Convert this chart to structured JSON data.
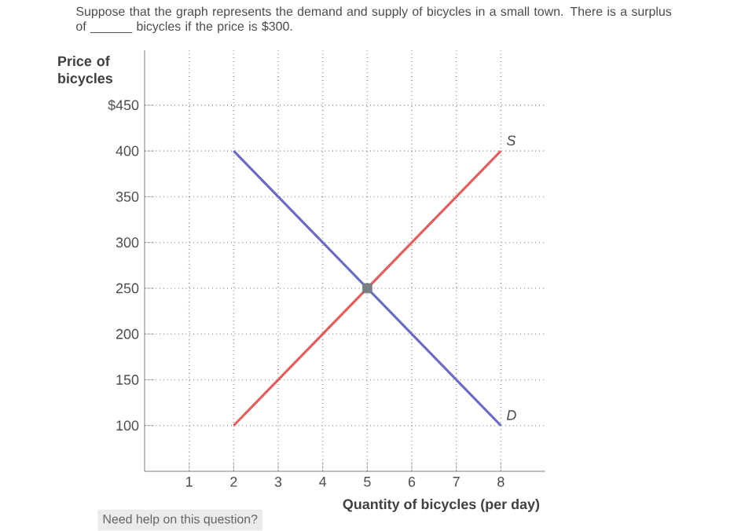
{
  "chart_data": {
    "type": "line",
    "title": "Suppose that the graph represents the demand and supply of bicycles in a small town. There is a surplus of ______ bicycles if the price is $300.",
    "xlabel": "Quantity of bicycles (per day)",
    "ylabel": "Price of bicycles",
    "xlim": [
      0,
      9
    ],
    "ylim": [
      50,
      510
    ],
    "xticks": [
      1,
      2,
      3,
      4,
      5,
      6,
      7,
      8
    ],
    "yticks": [
      100,
      150,
      200,
      250,
      300,
      350,
      400,
      {
        "value": 450,
        "label": "$450"
      }
    ],
    "grid": true,
    "line_style": "solid",
    "marker": "none",
    "series": [
      {
        "name": "D",
        "color": "#6b6bbf",
        "x": [
          2,
          8
        ],
        "values": [
          400,
          100
        ]
      },
      {
        "name": "S",
        "color": "#e06060",
        "x": [
          2,
          8
        ],
        "values": [
          100,
          400
        ]
      },
      {
        "type": "scatter",
        "marker": "square",
        "color": "#7a7f85",
        "x": [
          5
        ],
        "values": [
          250
        ]
      }
    ],
    "annotations": [
      "Need help on this question?"
    ]
  }
}
